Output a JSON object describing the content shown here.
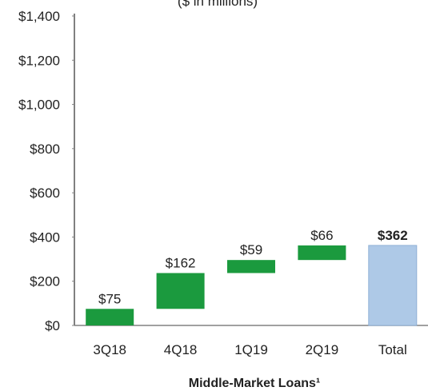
{
  "chart_data": {
    "type": "waterfall",
    "subtitle": "($ in millions)",
    "x_label": "Middle-Market Loans¹",
    "categories": [
      "3Q18",
      "4Q18",
      "1Q19",
      "2Q19",
      "Total"
    ],
    "values": [
      75,
      162,
      59,
      66,
      362
    ],
    "value_labels": [
      "$75",
      "$162",
      "$59",
      "$66",
      "$362"
    ],
    "colors": [
      "#1b9a3e",
      "#1b9a3e",
      "#1b9a3e",
      "#1b9a3e",
      "#aec9e7"
    ],
    "show_total": true,
    "ylim": [
      0,
      1400
    ],
    "yticks": [
      {
        "value": 0,
        "label": "$0"
      },
      {
        "value": 200,
        "label": "$200"
      },
      {
        "value": 400,
        "label": "$400"
      },
      {
        "value": 600,
        "label": "$600"
      },
      {
        "value": 800,
        "label": "$800"
      },
      {
        "value": 1000,
        "label": "$1,000"
      },
      {
        "value": 1200,
        "label": "$1,200"
      },
      {
        "value": 1400,
        "label": "$1,400"
      }
    ]
  }
}
